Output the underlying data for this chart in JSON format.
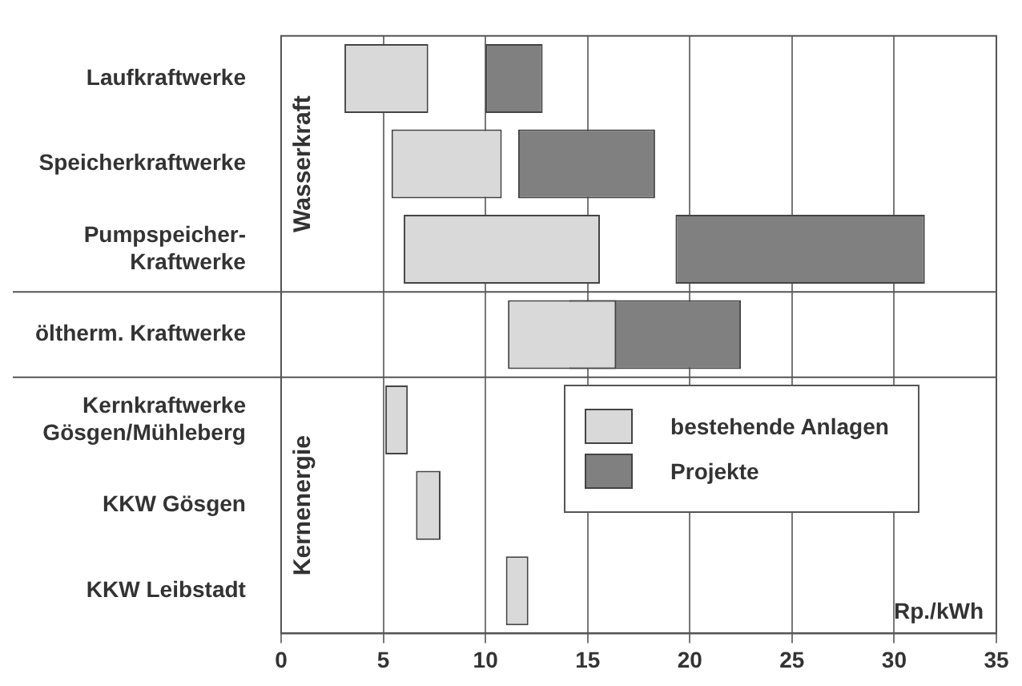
{
  "chart_data": {
    "type": "bar",
    "orientation": "horizontal",
    "xlabel": "Rp./kWh",
    "categories": [
      "Laufkraftwerke",
      "Speicherkraftwerke",
      "Pumpspeicher-\nKraftwerke",
      "öltherm. Kraftwerke",
      "Kernkraftwerke\nGösgen/Mühleberg",
      "KKW Gösgen",
      "KKW Leibstadt"
    ],
    "series": [
      {
        "name": "bestehende Anlagen",
        "color": "#d9d9d9",
        "base": [
          3.1,
          5.4,
          6.0,
          11.1,
          5.1,
          6.6,
          11.0
        ],
        "values": [
          4.1,
          5.4,
          9.6,
          5.3,
          1.1,
          1.2,
          1.1
        ]
      },
      {
        "name": "Projekte",
        "color": "#808080",
        "base": [
          10.0,
          11.6,
          19.3,
          14.1,
          null,
          null,
          null
        ],
        "values": [
          2.8,
          6.7,
          12.2,
          8.4,
          null,
          null,
          null
        ]
      }
    ],
    "xlim": [
      0,
      35
    ],
    "xticks": [
      0,
      5,
      10,
      15,
      20,
      25,
      30,
      35
    ],
    "grid": "x",
    "legend": "bottom right",
    "annotations": [
      "Wasserkraft",
      "Kernenergie"
    ]
  }
}
